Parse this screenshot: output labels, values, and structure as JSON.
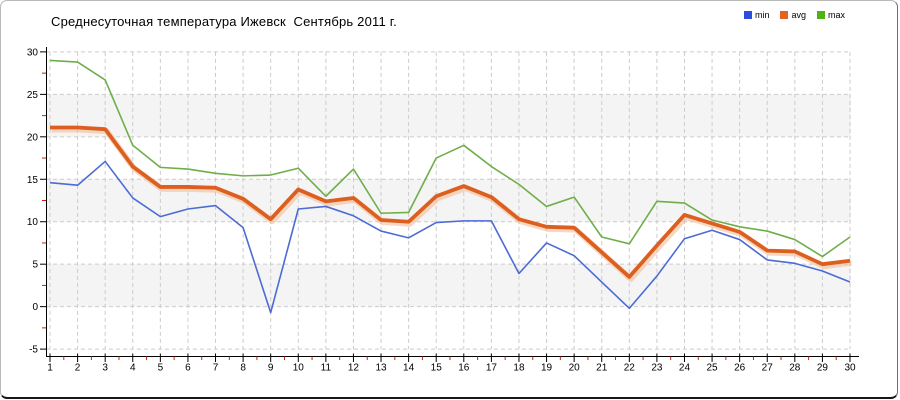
{
  "header": {
    "title": "Среднесуточная температура Ижевск  Сентябрь 2011 г."
  },
  "legend": {
    "items": [
      {
        "label": "min",
        "color": "#2d4de0"
      },
      {
        "label": "avg",
        "color": "#e2641f"
      },
      {
        "label": "max",
        "color": "#4fb412"
      }
    ]
  },
  "chart_data": {
    "type": "line",
    "title": "Среднесуточная температура Ижевск  Сентябрь 2011 г.",
    "xlabel": "",
    "ylabel": "",
    "x": [
      1,
      2,
      3,
      4,
      5,
      6,
      7,
      8,
      9,
      10,
      11,
      12,
      13,
      14,
      15,
      16,
      17,
      18,
      19,
      20,
      21,
      22,
      23,
      24,
      25,
      26,
      27,
      28,
      29,
      30
    ],
    "series": [
      {
        "name": "min",
        "color": "#4b6bd5",
        "values": [
          14.6,
          14.3,
          17.1,
          12.8,
          10.6,
          11.5,
          11.9,
          9.3,
          -0.7,
          11.5,
          11.8,
          10.7,
          8.9,
          8.1,
          9.9,
          10.1,
          10.1,
          3.9,
          7.5,
          6.0,
          2.9,
          -0.2,
          3.6,
          8.0,
          9.0,
          7.9,
          5.5,
          5.1,
          4.2,
          2.9
        ]
      },
      {
        "name": "avg",
        "color": "#dd5f1f",
        "values": [
          21.1,
          21.1,
          20.9,
          16.5,
          14.1,
          14.1,
          14.0,
          12.7,
          10.3,
          13.8,
          12.4,
          12.8,
          10.2,
          10.0,
          13.0,
          14.2,
          12.9,
          10.3,
          9.4,
          9.3,
          6.4,
          3.5,
          7.2,
          10.8,
          9.8,
          8.8,
          6.6,
          6.5,
          5.0,
          5.4
        ]
      },
      {
        "name": "max",
        "color": "#6fae49",
        "values": [
          29.0,
          28.8,
          26.7,
          19.0,
          16.4,
          16.2,
          15.7,
          15.4,
          15.5,
          16.3,
          13.0,
          16.2,
          11.0,
          11.1,
          17.5,
          19.0,
          16.5,
          14.4,
          11.8,
          12.9,
          8.2,
          7.4,
          12.4,
          12.2,
          10.2,
          9.4,
          8.9,
          7.9,
          5.9,
          8.2
        ]
      }
    ],
    "ylim": [
      -5,
      30
    ],
    "yticks": [
      30,
      25,
      20,
      15,
      10,
      5,
      0,
      -5
    ],
    "grid": "dashed both axes",
    "band_fill_ranges": [
      [
        25,
        20
      ],
      [
        15,
        10
      ],
      [
        5,
        0
      ]
    ],
    "legend_position": "top-right",
    "styles": {
      "band_color": "#f4f4f4",
      "grid_color": "#cccccc",
      "axis_color": "#000000",
      "minor_tick_color": "#cc2200",
      "avg_halo_color": "#f2b88f"
    }
  }
}
